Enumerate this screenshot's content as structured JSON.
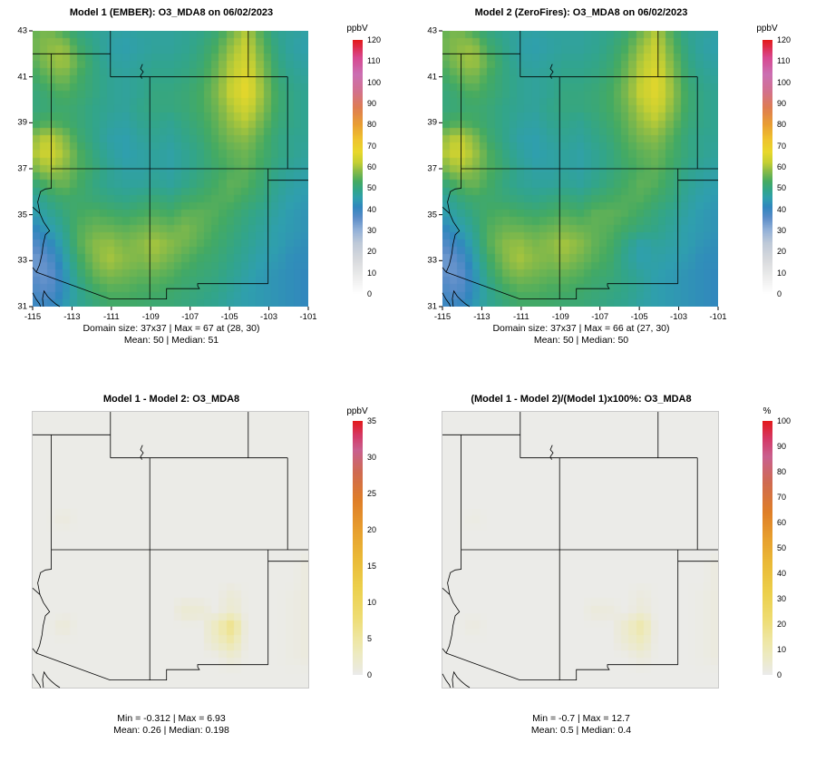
{
  "scales": {
    "ppbv_0_120": [
      [
        0,
        "#ffffff"
      ],
      [
        8,
        "#ececec"
      ],
      [
        16,
        "#d8dadd"
      ],
      [
        24,
        "#bec9d8"
      ],
      [
        30,
        "#93b2d8"
      ],
      [
        36,
        "#5a8cc8"
      ],
      [
        41,
        "#3186be"
      ],
      [
        45,
        "#2f9fae"
      ],
      [
        49,
        "#32a589"
      ],
      [
        53,
        "#44aa62"
      ],
      [
        58,
        "#8abb47"
      ],
      [
        62,
        "#c4cf33"
      ],
      [
        67,
        "#e8d82b"
      ],
      [
        73,
        "#efc32e"
      ],
      [
        80,
        "#e99f33"
      ],
      [
        88,
        "#de7d52"
      ],
      [
        96,
        "#d2718f"
      ],
      [
        104,
        "#cb6fb3"
      ],
      [
        112,
        "#d8478f"
      ],
      [
        120,
        "#e31a1c"
      ]
    ],
    "diff_0_35": [
      [
        0,
        "#ebebeb"
      ],
      [
        1,
        "#ebead9"
      ],
      [
        3,
        "#edeabf"
      ],
      [
        5,
        "#eee6a0"
      ],
      [
        8,
        "#eedc72"
      ],
      [
        12,
        "#ecd04c"
      ],
      [
        16,
        "#eaba37"
      ],
      [
        20,
        "#e79f2e"
      ],
      [
        24,
        "#df7f28"
      ],
      [
        28,
        "#cf6a52"
      ],
      [
        31,
        "#c9608f"
      ],
      [
        33,
        "#d43a68"
      ],
      [
        35,
        "#e31a1c"
      ]
    ],
    "pct_0_100": [
      [
        0,
        "#ebebeb"
      ],
      [
        3,
        "#ebead9"
      ],
      [
        8,
        "#edeabf"
      ],
      [
        14,
        "#eee6a0"
      ],
      [
        22,
        "#eedc72"
      ],
      [
        32,
        "#ecd04c"
      ],
      [
        44,
        "#eaba37"
      ],
      [
        54,
        "#e79f2e"
      ],
      [
        64,
        "#df7f28"
      ],
      [
        76,
        "#cf6a52"
      ],
      [
        86,
        "#c9608f"
      ],
      [
        93,
        "#d43a68"
      ],
      [
        100,
        "#e31a1c"
      ]
    ]
  },
  "chart_data": [
    {
      "type": "heatmap",
      "title": "Model 1 (EMBER): O3_MDA8 on 06/02/2023",
      "xlim": [
        -115,
        -101
      ],
      "ylim": [
        31,
        43
      ],
      "x_ticks": [
        -115,
        -113,
        -111,
        -109,
        -107,
        -105,
        -103,
        -101
      ],
      "y_ticks": [
        31,
        33,
        35,
        37,
        39,
        41,
        43
      ],
      "show_axes": true,
      "colorbar": {
        "title": "ppbV",
        "min": 0,
        "max": 120,
        "ticks": [
          0,
          10,
          20,
          30,
          40,
          50,
          60,
          70,
          80,
          90,
          100,
          110,
          120
        ],
        "scale_key": "ppbv_0_120"
      },
      "caption1": "Domain size: 37x37 | Max = 67 at (28, 30)",
      "caption2": "Mean: 50 |  Median: 51",
      "values": [
        [
          55,
          57,
          53,
          50,
          48,
          47,
          46,
          47,
          47,
          47,
          48,
          49,
          51,
          56,
          61,
          53,
          48,
          47,
          46
        ],
        [
          56,
          58,
          59,
          52,
          49,
          46,
          45,
          46,
          47,
          47,
          48,
          50,
          53,
          59,
          63,
          55,
          49,
          46,
          45
        ],
        [
          54,
          58,
          60,
          55,
          50,
          47,
          46,
          47,
          48,
          48,
          49,
          51,
          55,
          61,
          64,
          57,
          50,
          47,
          46
        ],
        [
          52,
          55,
          57,
          53,
          50,
          48,
          47,
          48,
          49,
          49,
          50,
          52,
          56,
          62,
          66,
          58,
          51,
          48,
          47
        ],
        [
          50,
          52,
          54,
          52,
          50,
          48,
          47,
          48,
          50,
          50,
          51,
          53,
          57,
          63,
          67,
          59,
          52,
          49,
          48
        ],
        [
          50,
          51,
          52,
          51,
          49,
          48,
          47,
          49,
          50,
          50,
          51,
          53,
          56,
          61,
          64,
          58,
          52,
          49,
          48
        ],
        [
          52,
          54,
          53,
          51,
          49,
          47,
          46,
          48,
          49,
          48,
          50,
          52,
          55,
          59,
          61,
          56,
          51,
          49,
          48
        ],
        [
          58,
          62,
          58,
          52,
          49,
          46,
          45,
          47,
          48,
          47,
          49,
          51,
          54,
          57,
          58,
          54,
          50,
          48,
          48
        ],
        [
          60,
          64,
          60,
          54,
          50,
          47,
          45,
          46,
          47,
          46,
          48,
          50,
          53,
          55,
          56,
          53,
          50,
          48,
          47
        ],
        [
          56,
          60,
          58,
          54,
          51,
          48,
          46,
          46,
          47,
          46,
          48,
          50,
          52,
          54,
          55,
          52,
          49,
          47,
          46
        ],
        [
          50,
          54,
          56,
          53,
          50,
          48,
          47,
          47,
          48,
          47,
          49,
          51,
          53,
          55,
          54,
          51,
          48,
          46,
          45
        ],
        [
          46,
          50,
          52,
          52,
          51,
          50,
          49,
          50,
          51,
          50,
          52,
          53,
          54,
          54,
          52,
          50,
          47,
          45,
          44
        ],
        [
          44,
          47,
          50,
          53,
          54,
          53,
          52,
          53,
          54,
          53,
          55,
          55,
          54,
          52,
          50,
          48,
          46,
          44,
          43
        ],
        [
          40,
          44,
          48,
          54,
          56,
          56,
          55,
          56,
          57,
          56,
          57,
          55,
          53,
          51,
          49,
          47,
          45,
          44,
          43
        ],
        [
          36,
          40,
          46,
          54,
          58,
          59,
          57,
          58,
          60,
          58,
          56,
          54,
          52,
          50,
          48,
          46,
          45,
          43,
          42
        ],
        [
          33,
          36,
          44,
          52,
          57,
          60,
          58,
          57,
          58,
          56,
          54,
          52,
          51,
          49,
          47,
          45,
          44,
          42,
          42
        ],
        [
          36,
          34,
          42,
          50,
          55,
          57,
          56,
          55,
          55,
          54,
          52,
          51,
          50,
          48,
          46,
          44,
          43,
          42,
          41
        ],
        [
          38,
          36,
          42,
          48,
          52,
          54,
          54,
          53,
          53,
          52,
          51,
          50,
          49,
          47,
          45,
          44,
          43,
          42,
          41
        ],
        [
          40,
          40,
          44,
          48,
          50,
          52,
          52,
          52,
          51,
          51,
          50,
          49,
          48,
          46,
          45,
          44,
          43,
          42,
          41
        ]
      ]
    },
    {
      "type": "heatmap",
      "title": "Model 2 (ZeroFires): O3_MDA8 on 06/02/2023",
      "xlim": [
        -115,
        -101
      ],
      "ylim": [
        31,
        43
      ],
      "x_ticks": [
        -115,
        -113,
        -111,
        -109,
        -107,
        -105,
        -103,
        -101
      ],
      "y_ticks": [
        31,
        33,
        35,
        37,
        39,
        41,
        43
      ],
      "show_axes": true,
      "colorbar": {
        "title": "ppbV",
        "min": 0,
        "max": 120,
        "ticks": [
          0,
          10,
          20,
          30,
          40,
          50,
          60,
          70,
          80,
          90,
          100,
          110,
          120
        ],
        "scale_key": "ppbv_0_120"
      },
      "caption1": "Domain size: 37x37 | Max = 66 at (27, 30)",
      "caption2": "Mean: 50 |  Median: 50",
      "values": [
        [
          55,
          57,
          53,
          50,
          48,
          47,
          46,
          47,
          47,
          47,
          48,
          49,
          51,
          56,
          61,
          53,
          48,
          47,
          46
        ],
        [
          56,
          58,
          59,
          52,
          49,
          46,
          45,
          46,
          47,
          47,
          48,
          50,
          53,
          59,
          63,
          55,
          49,
          46,
          45
        ],
        [
          54,
          58,
          60,
          55,
          50,
          47,
          46,
          47,
          48,
          48,
          49,
          51,
          55,
          61,
          64,
          57,
          50,
          47,
          46
        ],
        [
          52,
          55,
          57,
          53,
          50,
          48,
          47,
          48,
          49,
          49,
          50,
          52,
          56,
          62,
          66,
          58,
          51,
          48,
          47
        ],
        [
          50,
          52,
          54,
          52,
          50,
          48,
          47,
          48,
          50,
          50,
          51,
          53,
          57,
          63,
          66,
          59,
          52,
          49,
          48
        ],
        [
          50,
          51,
          52,
          51,
          49,
          48,
          47,
          49,
          50,
          50,
          51,
          53,
          56,
          61,
          64,
          58,
          52,
          49,
          48
        ],
        [
          52,
          54,
          53,
          51,
          49,
          47,
          46,
          48,
          49,
          48,
          50,
          52,
          55,
          59,
          61,
          56,
          51,
          49,
          48
        ],
        [
          58,
          62,
          58,
          52,
          49,
          46,
          45,
          47,
          48,
          47,
          49,
          51,
          54,
          57,
          58,
          54,
          50,
          48,
          48
        ],
        [
          60,
          64,
          60,
          54,
          50,
          47,
          45,
          46,
          47,
          46,
          48,
          50,
          53,
          55,
          56,
          53,
          50,
          48,
          47
        ],
        [
          56,
          60,
          58,
          54,
          51,
          48,
          46,
          46,
          47,
          46,
          48,
          50,
          52,
          54,
          55,
          52,
          49,
          47,
          46
        ],
        [
          50,
          54,
          56,
          53,
          50,
          48,
          47,
          47,
          48,
          47,
          49,
          51,
          53,
          55,
          54,
          51,
          48,
          46,
          45
        ],
        [
          46,
          50,
          52,
          52,
          51,
          50,
          49,
          50,
          51,
          50,
          52,
          53,
          54,
          54,
          52,
          50,
          47,
          45,
          44
        ],
        [
          44,
          47,
          50,
          53,
          54,
          53,
          52,
          53,
          54,
          53,
          55,
          55,
          54,
          52,
          50,
          48,
          46,
          44,
          43
        ],
        [
          40,
          44,
          48,
          54,
          56,
          56,
          55,
          56,
          57,
          56,
          55,
          54,
          52,
          50,
          49,
          47,
          45,
          44,
          43
        ],
        [
          36,
          40,
          46,
          54,
          58,
          59,
          57,
          58,
          60,
          58,
          55,
          53,
          49,
          45,
          47,
          46,
          45,
          43,
          42
        ],
        [
          33,
          36,
          44,
          52,
          57,
          60,
          58,
          57,
          58,
          56,
          54,
          52,
          48,
          45,
          46,
          45,
          44,
          42,
          42
        ],
        [
          36,
          34,
          42,
          50,
          55,
          57,
          56,
          55,
          55,
          54,
          52,
          51,
          49,
          47,
          45,
          44,
          43,
          42,
          41
        ],
        [
          38,
          36,
          42,
          48,
          52,
          54,
          54,
          53,
          53,
          52,
          51,
          50,
          49,
          47,
          45,
          44,
          43,
          42,
          41
        ],
        [
          40,
          40,
          44,
          48,
          50,
          52,
          52,
          52,
          51,
          51,
          50,
          49,
          48,
          46,
          45,
          44,
          43,
          42,
          41
        ]
      ]
    },
    {
      "type": "heatmap",
      "title": "Model 1 - Model 2: O3_MDA8",
      "xlim": [
        -115,
        -101
      ],
      "ylim": [
        31,
        43
      ],
      "show_axes": false,
      "colorbar": {
        "title": "ppbV",
        "min": 0,
        "max": 35,
        "ticks": [
          0,
          5,
          10,
          15,
          20,
          25,
          30,
          35
        ],
        "scale_key": "diff_0_35"
      },
      "caption1": "Min = -0.312 | Max = 6.93",
      "caption2": "Mean: 0.26 |  Median: 0.198",
      "grid_rows": 19,
      "grid_cols": 19,
      "values_base": 0.2,
      "values_overrides": [
        [
          7,
          2,
          0.8
        ],
        [
          10,
          18,
          0.8
        ],
        [
          11,
          18,
          0.8
        ],
        [
          12,
          13,
          1.2
        ],
        [
          12,
          17,
          0.5
        ],
        [
          12,
          18,
          0.8
        ],
        [
          13,
          10,
          1.6
        ],
        [
          13,
          11,
          1.3
        ],
        [
          13,
          13,
          1.8
        ],
        [
          13,
          17,
          0.5
        ],
        [
          13,
          18,
          0.8
        ],
        [
          14,
          2,
          1.2
        ],
        [
          14,
          12,
          3.2
        ],
        [
          14,
          13,
          6.9
        ],
        [
          14,
          17,
          0.5
        ],
        [
          14,
          18,
          0.8
        ],
        [
          15,
          12,
          2.2
        ],
        [
          15,
          13,
          4.4
        ],
        [
          15,
          17,
          0.5
        ],
        [
          15,
          18,
          0.8
        ],
        [
          16,
          13,
          1.5
        ],
        [
          16,
          17,
          0.5
        ],
        [
          16,
          18,
          0.8
        ]
      ]
    },
    {
      "type": "heatmap",
      "title": "(Model 1 - Model 2)/(Model 1)x100%: O3_MDA8",
      "xlim": [
        -115,
        -101
      ],
      "ylim": [
        31,
        43
      ],
      "show_axes": false,
      "colorbar": {
        "title": "%",
        "min": 0,
        "max": 100,
        "ticks": [
          0,
          10,
          20,
          30,
          40,
          50,
          60,
          70,
          80,
          90,
          100
        ],
        "scale_key": "pct_0_100"
      },
      "caption1": "Min = -0.7 | Max = 12.7",
      "caption2": "Mean: 0.5 |  Median: 0.4",
      "grid_rows": 19,
      "grid_cols": 19,
      "values_base": 0.5,
      "values_overrides": [
        [
          7,
          2,
          1.5
        ],
        [
          10,
          18,
          2.2
        ],
        [
          11,
          18,
          2.2
        ],
        [
          12,
          13,
          2.2
        ],
        [
          12,
          17,
          1.2
        ],
        [
          12,
          18,
          2.2
        ],
        [
          13,
          10,
          2.8
        ],
        [
          13,
          11,
          2.3
        ],
        [
          13,
          13,
          3.5
        ],
        [
          13,
          17,
          1.2
        ],
        [
          13,
          18,
          2.2
        ],
        [
          14,
          2,
          2.2
        ],
        [
          14,
          12,
          5.5
        ],
        [
          14,
          13,
          12.7
        ],
        [
          14,
          17,
          1.2
        ],
        [
          14,
          18,
          2.2
        ],
        [
          15,
          12,
          4.0
        ],
        [
          15,
          13,
          8.0
        ],
        [
          15,
          17,
          1.2
        ],
        [
          15,
          18,
          2.2
        ],
        [
          16,
          13,
          3.0
        ],
        [
          16,
          17,
          1.2
        ],
        [
          16,
          18,
          2.2
        ]
      ]
    }
  ]
}
